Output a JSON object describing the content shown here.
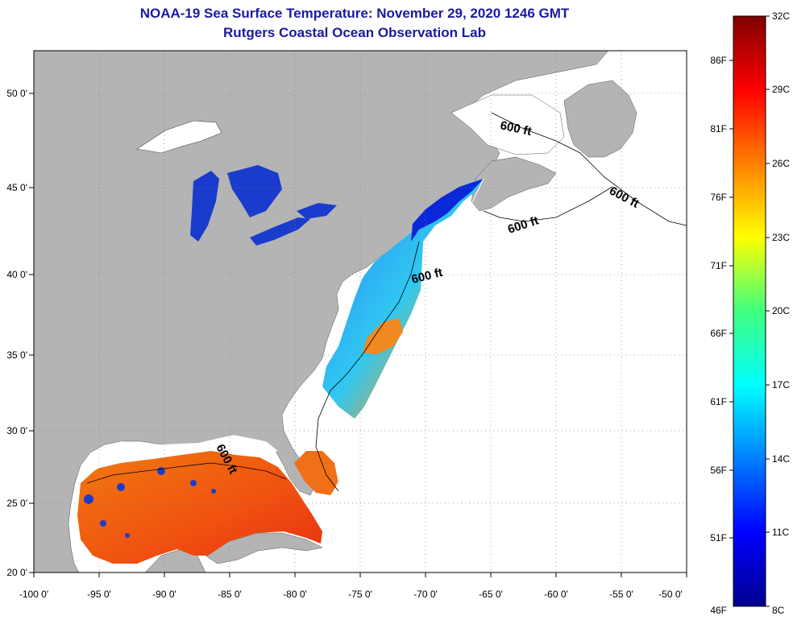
{
  "title": {
    "line1": "NOAA-19 Sea Surface Temperature:  November 29, 2020 1246 GMT",
    "line2": "Rutgers Coastal Ocean Observation Lab"
  },
  "map": {
    "lon_labels": [
      "-100 0'",
      "-95 0'",
      "-90 0'",
      "-85 0'",
      "-80 0'",
      "-75 0'",
      "-70 0'",
      "-65 0'",
      "-60 0'",
      "-55 0'",
      "-50 0'"
    ],
    "lat_labels": [
      "50 0'",
      "45 0'",
      "40 0'",
      "35 0'",
      "30 0'",
      "25 0'",
      "20 0'"
    ],
    "contour_label": "600 ft",
    "contour_labels": [
      "600 ft",
      "600 ft",
      "600 ft",
      "600 ft",
      "600 ft"
    ],
    "colors": {
      "land": "#b4b4b4",
      "ocean_nodata": "#ffffff",
      "warm": "#f06010",
      "cool": "#1030d0"
    }
  },
  "colorbar": {
    "celsius_labels": [
      "32C",
      "29C",
      "26C",
      "23C",
      "20C",
      "17C",
      "14C",
      "11C",
      "8C"
    ],
    "fahrenheit_labels": [
      "86F",
      "81F",
      "76F",
      "71F",
      "66F",
      "61F",
      "56F",
      "51F",
      "46F"
    ],
    "range_c": [
      8,
      32
    ]
  }
}
